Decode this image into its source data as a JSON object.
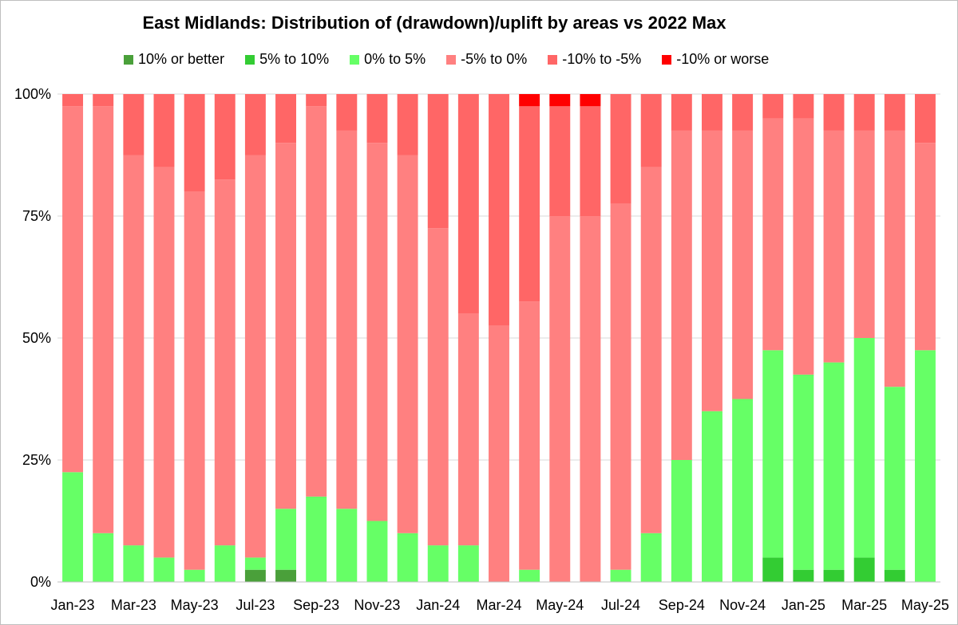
{
  "chart_data": {
    "type": "bar",
    "stacked": true,
    "title": "East Midlands: Distribution of (drawdown)/uplift by areas vs 2022 Max",
    "xlabel": "",
    "ylabel": "",
    "ylim": [
      0,
      100
    ],
    "yticks": [
      "0%",
      "25%",
      "50%",
      "75%",
      "100%"
    ],
    "grid": true,
    "legend": "top",
    "categories": [
      "Jan-23",
      "Feb-23",
      "Mar-23",
      "Apr-23",
      "May-23",
      "Jun-23",
      "Jul-23",
      "Aug-23",
      "Sep-23",
      "Oct-23",
      "Nov-23",
      "Dec-23",
      "Jan-24",
      "Feb-24",
      "Mar-24",
      "Apr-24",
      "May-24",
      "Jun-24",
      "Jul-24",
      "Aug-24",
      "Sep-24",
      "Oct-24",
      "Nov-24",
      "Dec-24",
      "Jan-25",
      "Feb-25",
      "Mar-25",
      "Apr-25",
      "May-25"
    ],
    "tick_labels": [
      "Jan-23",
      "Mar-23",
      "May-23",
      "Jul-23",
      "Sep-23",
      "Nov-23",
      "Jan-24",
      "Mar-24",
      "May-24",
      "Jul-24",
      "Sep-24",
      "Nov-24",
      "Jan-25",
      "Mar-25",
      "May-25"
    ],
    "series": [
      {
        "name": "10% or better",
        "color": "#4aa03a",
        "values": [
          0,
          0,
          0,
          0,
          0,
          0,
          2.5,
          2.5,
          0,
          0,
          0,
          0,
          0,
          0,
          0,
          0,
          0,
          0,
          0,
          0,
          0,
          0,
          0,
          0,
          0,
          0,
          0,
          0,
          0
        ]
      },
      {
        "name": "5% to 10%",
        "color": "#33cc33",
        "values": [
          0,
          0,
          0,
          0,
          0,
          0,
          0,
          0,
          0,
          0,
          0,
          0,
          0,
          0,
          0,
          0,
          0,
          0,
          0,
          0,
          0,
          0,
          0,
          5,
          2.5,
          2.5,
          5,
          2.5,
          0
        ]
      },
      {
        "name": "0% to 5%",
        "color": "#66ff66",
        "values": [
          22.5,
          10,
          7.5,
          5,
          2.5,
          7.5,
          2.5,
          12.5,
          17.5,
          15,
          12.5,
          10,
          7.5,
          7.5,
          0,
          2.5,
          0,
          0,
          2.5,
          10,
          25,
          35,
          37.5,
          42.5,
          40,
          42.5,
          45,
          37.5,
          47.5
        ]
      },
      {
        "name": "-5% to 0%",
        "color": "#ff8080",
        "values": [
          75,
          87.5,
          80,
          80,
          77.5,
          75,
          82.5,
          75,
          80,
          77.5,
          77.5,
          77.5,
          65,
          47.5,
          52.5,
          55,
          75,
          75,
          75,
          75,
          67.5,
          57.5,
          55,
          47.5,
          52.5,
          47.5,
          42.5,
          52.5,
          42.5
        ]
      },
      {
        "name": "-10% to -5%",
        "color": "#ff6666",
        "values": [
          2.5,
          2.5,
          12.5,
          15,
          20,
          17.5,
          12.5,
          10,
          2.5,
          7.5,
          10,
          12.5,
          27.5,
          45,
          47.5,
          40,
          22.5,
          22.5,
          22.5,
          15,
          7.5,
          7.5,
          7.5,
          5,
          5,
          7.5,
          7.5,
          7.5,
          10
        ]
      },
      {
        "name": "-10% or worse",
        "color": "#ff0000",
        "values": [
          0,
          0,
          0,
          0,
          0,
          0,
          0,
          0,
          0,
          0,
          0,
          0,
          0,
          0,
          0,
          2.5,
          2.5,
          2.5,
          0,
          0,
          0,
          0,
          0,
          0,
          0,
          0,
          0,
          0,
          0
        ]
      }
    ]
  }
}
